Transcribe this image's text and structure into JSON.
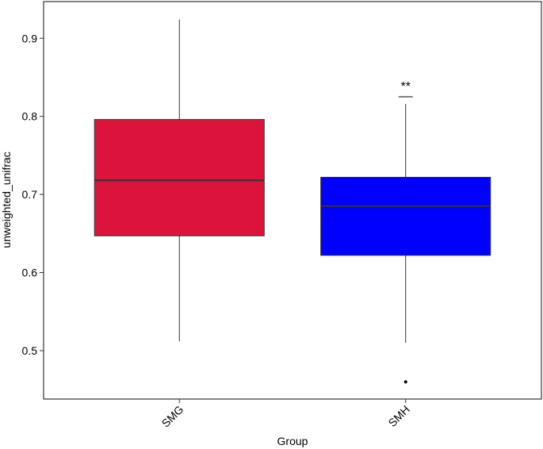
{
  "chart_data": {
    "type": "box",
    "x_label": "Group",
    "y_label": "unweighted_unifrac",
    "categories": [
      "SMG",
      "SMH"
    ],
    "boxes": [
      {
        "whisker_low": 0.512,
        "q1": 0.647,
        "median": 0.718,
        "q3": 0.796,
        "whisker_high": 0.924,
        "outliers": [],
        "color": "#dc143c"
      },
      {
        "whisker_low": 0.51,
        "q1": 0.622,
        "median": 0.685,
        "q3": 0.722,
        "whisker_high": 0.816,
        "outliers": [
          0.46
        ],
        "color": "#0000ff"
      }
    ],
    "annotations": [
      "**"
    ],
    "ylim": [
      0.438,
      0.947
    ],
    "yticks": [
      0.5,
      0.6,
      0.7,
      0.8,
      0.9
    ],
    "grid": false
  }
}
